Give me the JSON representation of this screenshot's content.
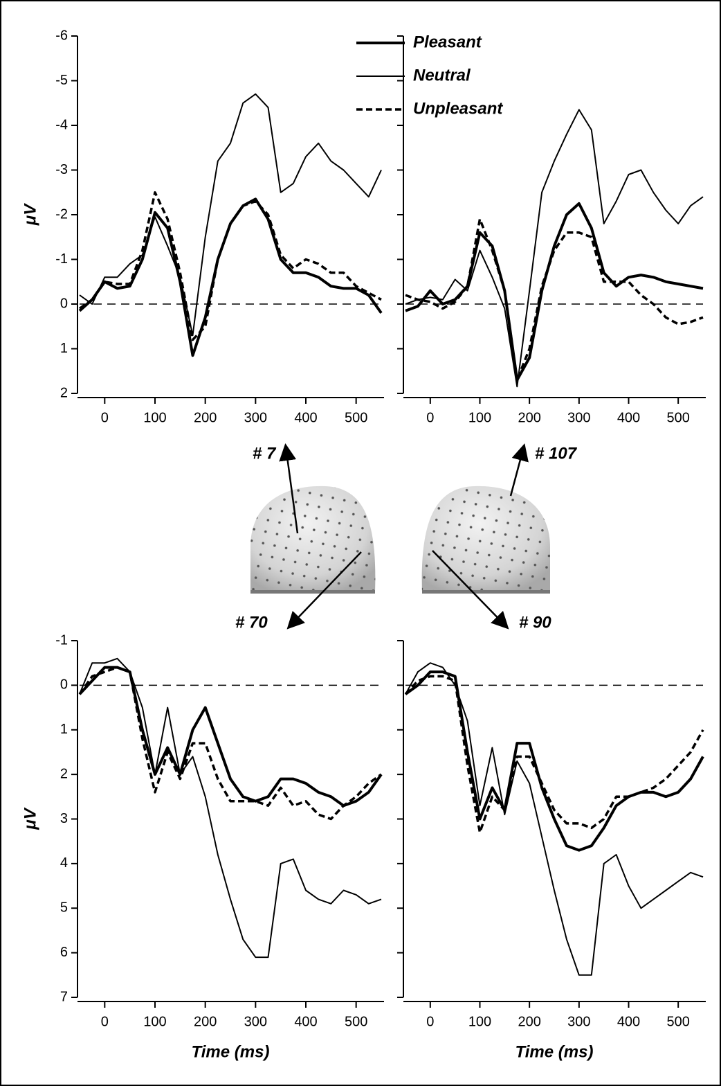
{
  "chart_data": [
    {
      "type": "line",
      "legend": "top-right",
      "ylabel": "μV",
      "show_ytick_labels": true,
      "invert_y": true,
      "zero_line": true,
      "xlim": [
        -50,
        550
      ],
      "xticks": [
        0,
        100,
        200,
        300,
        400,
        500
      ],
      "ylim": [
        -6,
        2
      ],
      "yticks": [
        -6,
        -5,
        -4,
        -3,
        -2,
        -1,
        0,
        1,
        2
      ],
      "x": [
        -50,
        -25,
        0,
        25,
        50,
        75,
        100,
        125,
        150,
        175,
        200,
        225,
        250,
        275,
        300,
        325,
        350,
        375,
        400,
        425,
        450,
        475,
        500,
        525,
        550
      ],
      "series": [
        {
          "name": "Pleasant",
          "color": "#000000",
          "width": 4,
          "dash": false,
          "values": [
            0.15,
            -0.1,
            -0.5,
            -0.35,
            -0.4,
            -1.0,
            -2.05,
            -1.7,
            -0.5,
            1.15,
            0.3,
            -1.0,
            -1.8,
            -2.2,
            -2.35,
            -1.9,
            -1.0,
            -0.7,
            -0.7,
            -0.6,
            -0.4,
            -0.35,
            -0.35,
            -0.2,
            0.2
          ]
        },
        {
          "name": "Neutral",
          "color": "#000000",
          "width": 2,
          "dash": false,
          "values": [
            -0.2,
            0.0,
            -0.6,
            -0.6,
            -0.9,
            -1.1,
            -1.95,
            -1.3,
            -0.6,
            0.7,
            -1.5,
            -3.2,
            -3.6,
            -4.5,
            -4.7,
            -4.4,
            -2.5,
            -2.7,
            -3.3,
            -3.6,
            -3.2,
            -3.0,
            -2.7,
            -2.4,
            -3.0
          ]
        },
        {
          "name": "Unpleasant",
          "color": "#000000",
          "width": 3.5,
          "dash": true,
          "values": [
            0.1,
            -0.1,
            -0.5,
            -0.45,
            -0.45,
            -1.2,
            -2.5,
            -1.9,
            -0.7,
            0.8,
            0.5,
            -1.0,
            -1.8,
            -2.2,
            -2.3,
            -2.0,
            -1.1,
            -0.8,
            -1.0,
            -0.9,
            -0.7,
            -0.7,
            -0.4,
            -0.25,
            -0.1
          ]
        }
      ]
    },
    {
      "type": "line",
      "show_ytick_labels": false,
      "invert_y": true,
      "zero_line": true,
      "xlim": [
        -50,
        550
      ],
      "xticks": [
        0,
        100,
        200,
        300,
        400,
        500
      ],
      "ylim": [
        -6,
        2
      ],
      "yticks": [
        -6,
        -5,
        -4,
        -3,
        -2,
        -1,
        0,
        1,
        2
      ],
      "x": [
        -50,
        -25,
        0,
        25,
        50,
        75,
        100,
        125,
        150,
        175,
        200,
        225,
        250,
        275,
        300,
        325,
        350,
        375,
        400,
        425,
        450,
        475,
        500,
        525,
        550
      ],
      "series": [
        {
          "color": "#000000",
          "width": 4,
          "dash": false,
          "values": [
            0.15,
            0.05,
            -0.3,
            0.0,
            -0.1,
            -0.4,
            -1.6,
            -1.3,
            -0.3,
            1.7,
            1.2,
            -0.3,
            -1.3,
            -2.0,
            -2.25,
            -1.7,
            -0.7,
            -0.4,
            -0.6,
            -0.65,
            -0.6,
            -0.5,
            -0.45,
            -0.4,
            -0.35
          ]
        },
        {
          "color": "#000000",
          "width": 2,
          "dash": false,
          "values": [
            0.0,
            -0.1,
            -0.15,
            -0.1,
            -0.55,
            -0.3,
            -1.2,
            -0.6,
            0.1,
            1.85,
            -0.3,
            -2.5,
            -3.2,
            -3.8,
            -4.35,
            -3.9,
            -1.8,
            -2.3,
            -2.9,
            -3.0,
            -2.5,
            -2.1,
            -1.8,
            -2.2,
            -2.4
          ]
        },
        {
          "color": "#000000",
          "width": 3.5,
          "dash": true,
          "values": [
            -0.2,
            -0.1,
            -0.05,
            0.1,
            -0.05,
            -0.4,
            -1.9,
            -1.2,
            -0.3,
            1.7,
            1.0,
            -0.4,
            -1.2,
            -1.6,
            -1.6,
            -1.5,
            -0.5,
            -0.5,
            -0.5,
            -0.2,
            0.0,
            0.3,
            0.45,
            0.4,
            0.3
          ]
        }
      ]
    },
    {
      "type": "line",
      "ylabel": "μV",
      "xlabel": "Time (ms)",
      "show_ytick_labels": true,
      "invert_y": true,
      "zero_line": true,
      "xlim": [
        -50,
        550
      ],
      "xticks": [
        0,
        100,
        200,
        300,
        400,
        500
      ],
      "ylim": [
        -1,
        7
      ],
      "yticks": [
        -1,
        0,
        1,
        2,
        3,
        4,
        5,
        6,
        7
      ],
      "x": [
        -50,
        -25,
        0,
        25,
        50,
        75,
        100,
        125,
        150,
        175,
        200,
        225,
        250,
        275,
        300,
        325,
        350,
        375,
        400,
        425,
        450,
        475,
        500,
        525,
        550
      ],
      "series": [
        {
          "color": "#000000",
          "width": 4,
          "dash": false,
          "values": [
            0.2,
            -0.1,
            -0.4,
            -0.4,
            -0.3,
            1.0,
            2.0,
            1.4,
            2.0,
            1.0,
            0.5,
            1.3,
            2.1,
            2.5,
            2.6,
            2.5,
            2.1,
            2.1,
            2.2,
            2.4,
            2.5,
            2.7,
            2.6,
            2.4,
            2.0
          ]
        },
        {
          "color": "#000000",
          "width": 2,
          "dash": false,
          "values": [
            0.2,
            -0.5,
            -0.5,
            -0.6,
            -0.3,
            0.5,
            2.0,
            0.5,
            2.0,
            1.6,
            2.5,
            3.8,
            4.8,
            5.7,
            6.1,
            6.1,
            4.0,
            3.9,
            4.6,
            4.8,
            4.9,
            4.6,
            4.7,
            4.9,
            4.8
          ]
        },
        {
          "color": "#000000",
          "width": 3.5,
          "dash": true,
          "values": [
            0.2,
            -0.2,
            -0.3,
            -0.4,
            -0.3,
            1.2,
            2.4,
            1.5,
            2.1,
            1.3,
            1.3,
            2.1,
            2.6,
            2.6,
            2.6,
            2.7,
            2.3,
            2.7,
            2.6,
            2.9,
            3.0,
            2.7,
            2.5,
            2.2,
            2.0
          ]
        }
      ]
    },
    {
      "type": "line",
      "xlabel": "Time (ms)",
      "show_ytick_labels": false,
      "invert_y": true,
      "zero_line": true,
      "xlim": [
        -50,
        550
      ],
      "xticks": [
        0,
        100,
        200,
        300,
        400,
        500
      ],
      "ylim": [
        -1,
        7
      ],
      "yticks": [
        -1,
        0,
        1,
        2,
        3,
        4,
        5,
        6,
        7
      ],
      "x": [
        -50,
        -25,
        0,
        25,
        50,
        75,
        100,
        125,
        150,
        175,
        200,
        225,
        250,
        275,
        300,
        325,
        350,
        375,
        400,
        425,
        450,
        475,
        500,
        525,
        550
      ],
      "series": [
        {
          "color": "#000000",
          "width": 4,
          "dash": false,
          "values": [
            0.2,
            0.0,
            -0.3,
            -0.3,
            -0.2,
            1.5,
            3.0,
            2.3,
            2.8,
            1.3,
            1.3,
            2.3,
            3.0,
            3.6,
            3.7,
            3.6,
            3.2,
            2.7,
            2.5,
            2.4,
            2.4,
            2.5,
            2.4,
            2.1,
            1.6
          ]
        },
        {
          "color": "#000000",
          "width": 2,
          "dash": false,
          "values": [
            0.2,
            -0.3,
            -0.5,
            -0.4,
            0.0,
            0.8,
            2.7,
            1.4,
            2.9,
            1.7,
            2.2,
            3.4,
            4.6,
            5.7,
            6.5,
            6.5,
            4.0,
            3.8,
            4.5,
            5.0,
            4.8,
            4.6,
            4.4,
            4.2,
            4.3
          ]
        },
        {
          "color": "#000000",
          "width": 3.5,
          "dash": true,
          "values": [
            0.2,
            -0.1,
            -0.2,
            -0.2,
            -0.1,
            1.8,
            3.3,
            2.5,
            2.8,
            1.6,
            1.6,
            2.2,
            2.8,
            3.1,
            3.1,
            3.2,
            3.0,
            2.5,
            2.5,
            2.4,
            2.3,
            2.1,
            1.8,
            1.5,
            1.0
          ]
        }
      ]
    }
  ],
  "electrodes": [
    {
      "label": "# 7"
    },
    {
      "label": "# 107"
    },
    {
      "label": "# 70"
    },
    {
      "label": "# 90"
    }
  ]
}
